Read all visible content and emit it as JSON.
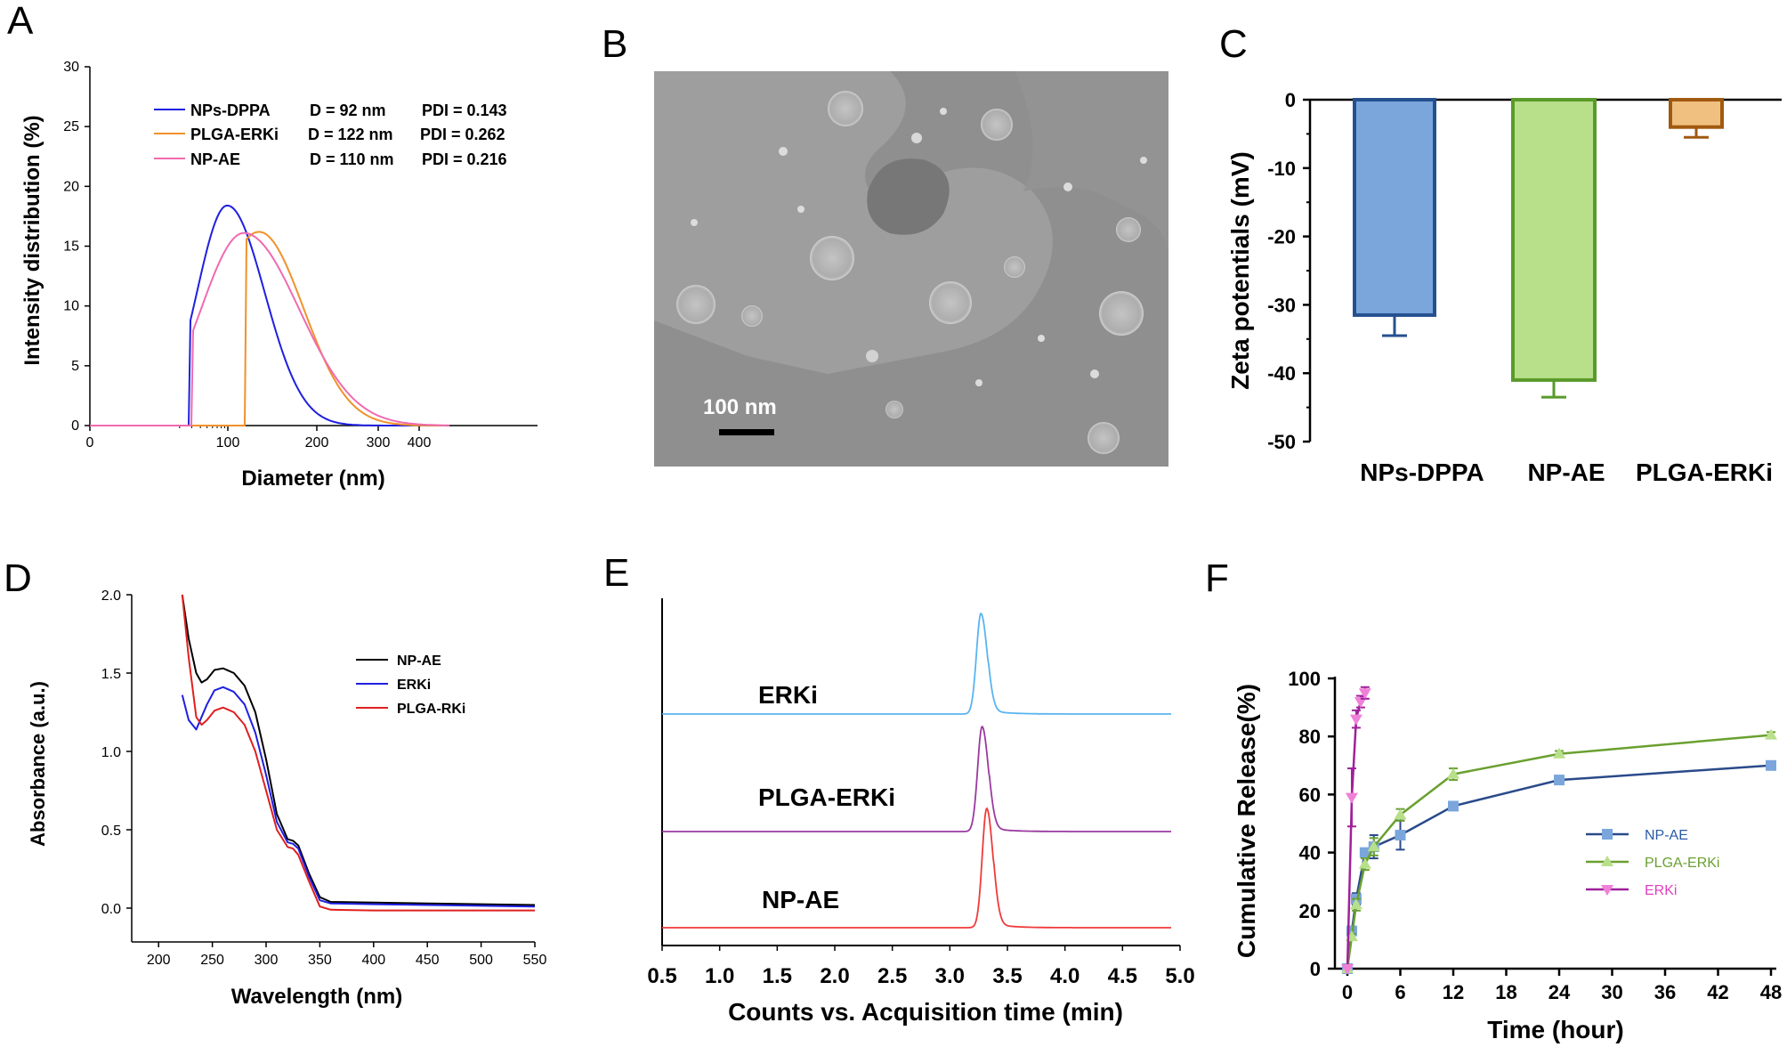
{
  "colors": {
    "dpa_line": "#1f1fe0",
    "plga_line": "#f0922a",
    "npae_line": "#f06ab0",
    "bar_dppa_fill": "#7aa6dc",
    "bar_dppa_edge": "#24508f",
    "bar_npae_fill": "#b8e08a",
    "bar_npae_edge": "#5a9a2a",
    "bar_plga_fill": "#f0c080",
    "bar_plga_edge": "#a05a10",
    "uv_npae": "#000000",
    "uv_erki": "#1f1fe0",
    "uv_plga": "#e01f1f",
    "chrom_erki": "#5ab4f0",
    "chrom_plga": "#9a3aa0",
    "chrom_npae": "#f03a3a",
    "rel_npae": "#2a4a8a",
    "rel_plga": "#6aa030",
    "rel_erki": "#a0209a"
  },
  "panel_labels": {
    "a": "A",
    "b": "B",
    "c": "C",
    "d": "D",
    "e": "E",
    "f": "F"
  },
  "sem_image": {
    "scale_label": "100 nm"
  },
  "chart_data": [
    {
      "panel": "A",
      "type": "line",
      "xlabel": "Diameter (nm)",
      "ylabel": "Intensity distribution (%)",
      "xscale": "log",
      "x_ticks": [
        "0",
        "100",
        "200",
        "300",
        "400"
      ],
      "y_ticks": [
        "0",
        "5",
        "10",
        "15",
        "20",
        "25",
        "30"
      ],
      "ylim": [
        0,
        30
      ],
      "legend": [
        {
          "name": "NPs-DPPA",
          "d": "D = 92 nm",
          "pdi": "PDI = 0.143"
        },
        {
          "name": "PLGA-ERKi",
          "d": "D = 122 nm",
          "pdi": "PDI = 0.262"
        },
        {
          "name": "NP-AE",
          "d": "D = 110 nm",
          "pdi": "PDI = 0.216"
        }
      ],
      "series": [
        {
          "name": "NPs-DPPA",
          "peak_x": 98,
          "peak_y": 18.4
        },
        {
          "name": "PLGA-ERKi",
          "peak_x": 135,
          "peak_y": 16.2
        },
        {
          "name": "NP-AE",
          "peak_x": 118,
          "peak_y": 16.1
        }
      ]
    },
    {
      "panel": "C",
      "type": "bar",
      "ylabel": "Zeta potentials (mV)",
      "categories": [
        "NPs-DPPA",
        "NP-AE",
        "PLGA-ERKi"
      ],
      "values": [
        -31.5,
        -41,
        -4
      ],
      "errors": [
        3,
        2.5,
        1.5
      ],
      "y_ticks": [
        "0",
        "-10",
        "-20",
        "-30",
        "-40",
        "-50"
      ],
      "ylim": [
        -50,
        0
      ]
    },
    {
      "panel": "D",
      "type": "line",
      "xlabel": "Wavelength (nm)",
      "ylabel": "Absorbance (a.u.)",
      "x_ticks": [
        "200",
        "250",
        "300",
        "350",
        "400",
        "450",
        "500",
        "550"
      ],
      "y_ticks": [
        "0.0",
        "0.5",
        "1.0",
        "1.5",
        "2.0"
      ],
      "xlim": [
        175,
        550
      ],
      "ylim": [
        -0.1,
        2.0
      ],
      "legend": [
        "NP-AE",
        "ERKi",
        "PLGA-RKi"
      ],
      "series": [
        {
          "name": "NP-AE",
          "x": [
            222,
            228,
            235,
            240,
            245,
            252,
            260,
            270,
            280,
            290,
            300,
            310,
            320,
            325,
            330,
            340,
            350,
            360,
            400,
            450,
            500,
            550
          ],
          "y": [
            2.0,
            1.72,
            1.5,
            1.44,
            1.46,
            1.52,
            1.53,
            1.5,
            1.42,
            1.25,
            0.95,
            0.6,
            0.44,
            0.43,
            0.4,
            0.22,
            0.07,
            0.04,
            0.035,
            0.03,
            0.025,
            0.02
          ]
        },
        {
          "name": "ERKi",
          "x": [
            222,
            228,
            235,
            240,
            245,
            252,
            260,
            270,
            280,
            290,
            300,
            310,
            320,
            325,
            330,
            340,
            350,
            360,
            400,
            450,
            500,
            550
          ],
          "y": [
            1.36,
            1.2,
            1.14,
            1.22,
            1.3,
            1.39,
            1.41,
            1.38,
            1.3,
            1.12,
            0.85,
            0.55,
            0.42,
            0.41,
            0.38,
            0.2,
            0.05,
            0.03,
            0.025,
            0.02,
            0.015,
            0.01
          ]
        },
        {
          "name": "PLGA-RKi",
          "x": [
            222,
            228,
            235,
            240,
            245,
            252,
            260,
            270,
            280,
            290,
            300,
            310,
            320,
            325,
            330,
            340,
            350,
            360,
            400,
            450,
            500,
            550
          ],
          "y": [
            2.0,
            1.6,
            1.22,
            1.17,
            1.2,
            1.26,
            1.28,
            1.25,
            1.17,
            1.0,
            0.75,
            0.5,
            0.39,
            0.38,
            0.34,
            0.17,
            0.01,
            -0.01,
            -0.015,
            -0.015,
            -0.015,
            -0.015
          ]
        }
      ]
    },
    {
      "panel": "E",
      "type": "line",
      "xlabel": "Counts vs. Acquisition time (min)",
      "x_ticks": [
        "0.5",
        "1.0",
        "1.5",
        "2.0",
        "2.5",
        "3.0",
        "3.5",
        "4.0",
        "4.5",
        "5.0"
      ],
      "xlim": [
        0.5,
        5.0
      ],
      "series": [
        {
          "name": "ERKi",
          "peak_x": 3.27
        },
        {
          "name": "PLGA-ERKi",
          "peak_x": 3.28
        },
        {
          "name": "NP-AE",
          "peak_x": 3.32
        }
      ]
    },
    {
      "panel": "F",
      "type": "line",
      "xlabel": "Time (hour)",
      "ylabel": "Cumulative Release(%)",
      "x_ticks": [
        "0",
        "6",
        "12",
        "18",
        "24",
        "30",
        "36",
        "42",
        "48"
      ],
      "y_ticks": [
        "0",
        "20",
        "40",
        "60",
        "80",
        "100"
      ],
      "xlim": [
        0,
        48
      ],
      "ylim": [
        0,
        100
      ],
      "legend": [
        "NP-AE",
        "PLGA-ERKi",
        "ERKi"
      ],
      "series": [
        {
          "name": "NP-AE",
          "x": [
            0,
            0.5,
            1,
            2,
            3,
            6,
            12,
            24,
            48
          ],
          "y": [
            0,
            13,
            24,
            40,
            42,
            46,
            56,
            65,
            70
          ],
          "err": [
            0,
            1,
            2,
            1,
            4,
            5,
            1,
            1,
            1
          ]
        },
        {
          "name": "PLGA-ERKi",
          "x": [
            0,
            0.5,
            1,
            2,
            3,
            6,
            12,
            24,
            48
          ],
          "y": [
            0,
            11,
            22,
            36,
            42,
            53,
            67,
            74,
            80.5
          ],
          "err": [
            0,
            1,
            2,
            2,
            3,
            2,
            2,
            1,
            1
          ]
        },
        {
          "name": "ERKi",
          "x": [
            0,
            0.5,
            1,
            1.5,
            2
          ],
          "y": [
            0,
            59,
            86,
            92,
            95
          ],
          "err": [
            0,
            10,
            3,
            2,
            2
          ]
        }
      ]
    }
  ]
}
